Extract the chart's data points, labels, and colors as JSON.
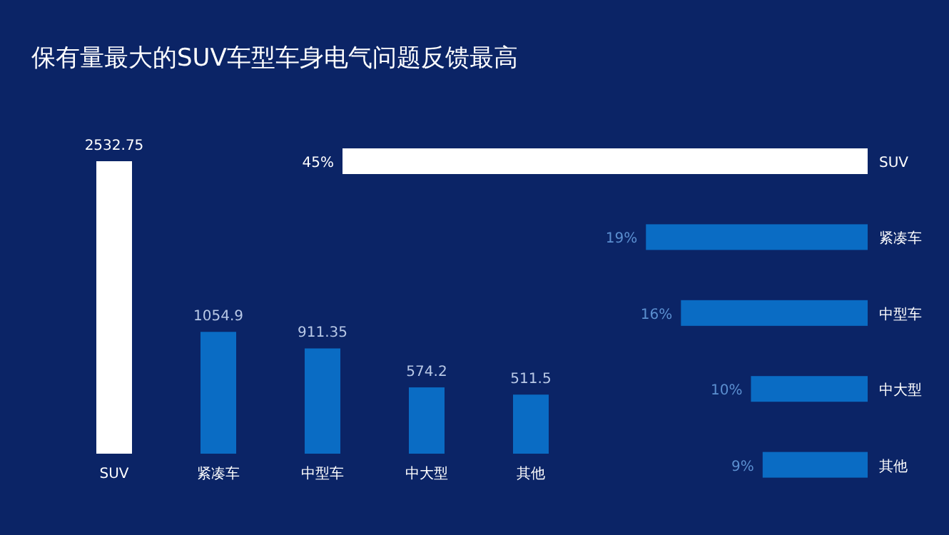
{
  "chart_data": [
    {
      "type": "bar",
      "title": "保有量最大的SUV车型车身电气问题反馈最高",
      "categories": [
        "SUV",
        "紧凑车",
        "中型车",
        "中大型",
        "其他"
      ],
      "values": [
        2532.75,
        1054.9,
        911.35,
        574.2,
        511.5
      ],
      "colors": [
        "#ffffff",
        "#0a6cc4",
        "#0a6cc4",
        "#0a6cc4",
        "#0a6cc4"
      ],
      "data_labels": true
    },
    {
      "type": "bar",
      "orientation": "horizontal",
      "categories": [
        "SUV",
        "紧凑车",
        "中型车",
        "中大型",
        "其他"
      ],
      "values": [
        45,
        19,
        16,
        10,
        9
      ],
      "value_labels": [
        "45%",
        "19%",
        "16%",
        "10%",
        "9%"
      ],
      "colors": [
        "#ffffff",
        "#0a6cc4",
        "#0a6cc4",
        "#0a6cc4",
        "#0a6cc4"
      ]
    }
  ]
}
